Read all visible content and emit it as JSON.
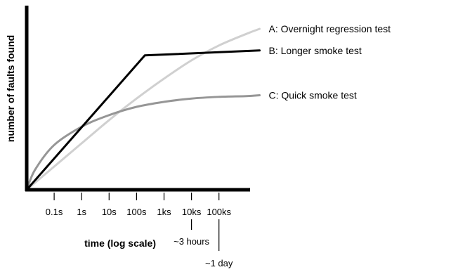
{
  "chart_data": {
    "type": "line",
    "xlabel": "time (log scale)",
    "ylabel": "number of faults found",
    "x_scale": "log",
    "x_ticks": [
      {
        "label": "0.1s",
        "value": 0.1
      },
      {
        "label": "1s",
        "value": 1
      },
      {
        "label": "10s",
        "value": 10
      },
      {
        "label": "100s",
        "value": 100
      },
      {
        "label": "1ks",
        "value": 1000
      },
      {
        "label": "10ks",
        "value": 10000
      },
      {
        "label": "100ks",
        "value": 100000
      }
    ],
    "annotations": [
      {
        "text": "~3 hours",
        "x": 10000
      },
      {
        "text": "~1 day",
        "x": 100000
      }
    ],
    "series": [
      {
        "name": "A: Overnight regression test",
        "color": "#d0d0d0",
        "x": [
          0.01,
          0.1,
          1,
          10,
          100,
          1000,
          10000,
          100000,
          1000000,
          3000000
        ],
        "y": [
          0,
          0.14,
          0.28,
          0.42,
          0.55,
          0.67,
          0.78,
          0.87,
          0.94,
          0.97
        ]
      },
      {
        "name": "B: Longer smoke test",
        "color": "#000000",
        "x": [
          0.01,
          200,
          3000000
        ],
        "y": [
          0,
          0.81,
          0.84
        ]
      },
      {
        "name": "C: Quick smoke test",
        "color": "#969696",
        "x": [
          0.01,
          0.02,
          0.1,
          1,
          10,
          100,
          1000,
          10000,
          100000,
          1000000,
          3000000
        ],
        "y": [
          0,
          0.12,
          0.27,
          0.38,
          0.45,
          0.5,
          0.53,
          0.55,
          0.56,
          0.565,
          0.57
        ]
      }
    ]
  }
}
